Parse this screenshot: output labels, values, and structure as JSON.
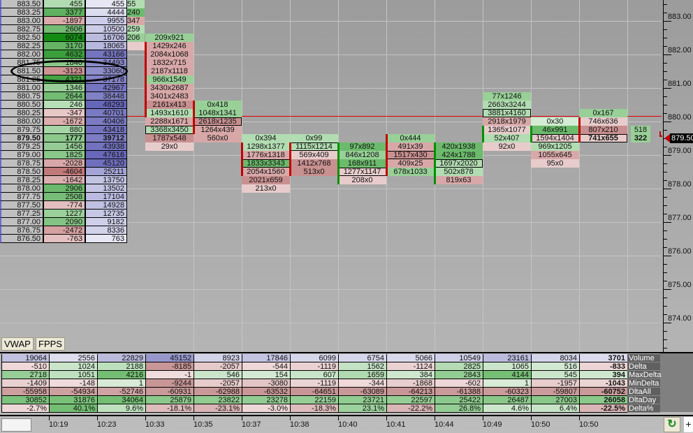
{
  "ladder": {
    "rows": [
      {
        "price": "883.50",
        "delta": 455,
        "volume": 455,
        "prev": "55",
        "prev_tone": "g1"
      },
      {
        "price": "883.25",
        "delta": 3377,
        "volume": 4444,
        "prev": "240",
        "prev_tone": "g3"
      },
      {
        "price": "883.00",
        "delta": -1897,
        "volume": 9955,
        "prev": "347",
        "prev_tone": "r2"
      },
      {
        "price": "882.75",
        "delta": 2606,
        "volume": 10500,
        "prev": "259",
        "prev_tone": "g1"
      },
      {
        "price": "882.50",
        "delta": 6074,
        "volume": 16706,
        "prev": "206",
        "prev_tone": "g2"
      },
      {
        "price": "882.25",
        "delta": 3170,
        "volume": 18065,
        "prev": "",
        "prev_tone": "r1"
      },
      {
        "price": "882.00",
        "delta": 4632,
        "volume": 43166
      },
      {
        "price": "881.75",
        "delta": 1840,
        "volume": 34493
      },
      {
        "price": "881.50",
        "delta": -3123,
        "volume": 33060
      },
      {
        "price": "881.25",
        "delta": 4321,
        "volume": 37178
      },
      {
        "price": "881.00",
        "delta": 1346,
        "volume": 42967
      },
      {
        "price": "880.75",
        "delta": 2644,
        "volume": 38448
      },
      {
        "price": "880.50",
        "delta": 246,
        "volume": 48293
      },
      {
        "price": "880.25",
        "delta": -347,
        "volume": 40701
      },
      {
        "price": "880.00",
        "delta": -1672,
        "volume": 40406
      },
      {
        "price": "879.75",
        "delta": 880,
        "volume": 43418
      },
      {
        "price": "879.50",
        "delta": 1777,
        "volume": 39712,
        "current": true
      },
      {
        "price": "879.25",
        "delta": 1456,
        "volume": 43938
      },
      {
        "price": "879.00",
        "delta": 1825,
        "volume": 47616
      },
      {
        "price": "878.75",
        "delta": -2028,
        "volume": 45120
      },
      {
        "price": "878.50",
        "delta": -4604,
        "volume": 25211
      },
      {
        "price": "878.25",
        "delta": -1642,
        "volume": 13750
      },
      {
        "price": "878.00",
        "delta": 2906,
        "volume": 13502
      },
      {
        "price": "877.75",
        "delta": 2508,
        "volume": 17104
      },
      {
        "price": "877.50",
        "delta": -774,
        "volume": 14928
      },
      {
        "price": "877.25",
        "delta": 1227,
        "volume": 12735
      },
      {
        "price": "877.00",
        "delta": 2090,
        "volume": 9182
      },
      {
        "price": "876.75",
        "delta": -2472,
        "volume": 8336
      },
      {
        "price": "876.50",
        "delta": -763,
        "volume": 763
      }
    ],
    "highlighted_price": "881.50"
  },
  "footprint_columns": [
    {
      "time": "10:33",
      "bar": {
        "from": "882.25",
        "to": "880.25",
        "color": "#c00000"
      },
      "top": "882.50",
      "cells": [
        [
          "209x921",
          "g2"
        ],
        [
          "1429x246",
          "r2"
        ],
        [
          "2084x1068",
          "r2"
        ],
        [
          "1832x715",
          "r2"
        ],
        [
          "2187x1118",
          "r2"
        ],
        [
          "966x1549",
          "g2"
        ],
        [
          "3430x2687",
          "r2"
        ],
        [
          "3401x2483",
          "r2"
        ],
        [
          "2161x413",
          "r3"
        ],
        [
          "1493x1610",
          "g1"
        ],
        [
          "2288x1671",
          "r2"
        ],
        [
          "3368x3450",
          "g1",
          "poc"
        ],
        [
          "1787x548",
          "r3"
        ],
        [
          "29x0",
          "r1"
        ]
      ]
    },
    {
      "time": "10:35",
      "bar": {
        "from": "880.50",
        "to": "879.75",
        "color": "#c00000"
      },
      "top": "880.50",
      "cells": [
        [
          "0x418",
          "g2"
        ],
        [
          "1048x1341",
          "g2"
        ],
        [
          "2618x1235",
          "r3",
          "poc"
        ],
        [
          "1264x439",
          "r2"
        ],
        [
          "560x0",
          "r2"
        ]
      ]
    },
    {
      "time": "10:37",
      "bar": {
        "from": "879.25",
        "to": "878.50",
        "color": "#c00000"
      },
      "top": "879.50",
      "cells": [
        [
          "0x394",
          "g1"
        ],
        [
          "1298x1377",
          "g1"
        ],
        [
          "1776x1318",
          "r2"
        ],
        [
          "1833x3343",
          "g3",
          "poc"
        ],
        [
          "2054x1560",
          "r2"
        ],
        [
          "2021x659",
          "r3"
        ],
        [
          "213x0",
          "r1"
        ]
      ]
    },
    {
      "time": "10:38",
      "bar": {
        "from": "879.25",
        "to": "878.50",
        "color": "#c00000"
      },
      "top": "879.50",
      "cells": [
        [
          "0x99",
          "g1"
        ],
        [
          "1115x1214",
          "g1",
          "poc"
        ],
        [
          "569x409",
          "r1"
        ],
        [
          "1412x768",
          "r3"
        ],
        [
          "513x0",
          "r3"
        ]
      ]
    },
    {
      "time": "10:40",
      "bar": {
        "from": "879.25",
        "to": "878.25",
        "color": "#009000"
      },
      "top": "879.25",
      "cells": [
        [
          "97x892",
          "g3"
        ],
        [
          "846x1208",
          "g2"
        ],
        [
          "168x911",
          "g3"
        ],
        [
          "1277x1147",
          "r1",
          "poc"
        ],
        [
          "208x0",
          "r1"
        ]
      ]
    },
    {
      "time": "10:41",
      "bar": {
        "from": "879.50",
        "to": "878.50",
        "color": "#c00000"
      },
      "top": "879.50",
      "cells": [
        [
          "0x444",
          "g2"
        ],
        [
          "491x39",
          "r2"
        ],
        [
          "1517x430",
          "r3",
          "poc"
        ],
        [
          "409x25",
          "r2"
        ],
        [
          "678x1033",
          "g2"
        ]
      ]
    },
    {
      "time": "10:44",
      "bar": {
        "from": "879.25",
        "to": "878.25",
        "color": "#009000"
      },
      "top": "879.25",
      "cells": [
        [
          "420x1938",
          "g3"
        ],
        [
          "424x1788",
          "g3"
        ],
        [
          "1697x2020",
          "g1",
          "poc"
        ],
        [
          "502x878",
          "g1"
        ],
        [
          "819x63",
          "r2"
        ]
      ]
    },
    {
      "time": "10:49",
      "bar": {
        "from": "879.75",
        "to": "879.50",
        "color": "#009000"
      },
      "top": "880.75",
      "cells": [
        [
          "77x1246",
          "g2"
        ],
        [
          "2663x3244",
          "g1"
        ],
        [
          "3881x4160",
          "g1",
          "poc"
        ],
        [
          "2918x1979",
          "r2"
        ],
        [
          "1365x1077",
          "r1"
        ],
        [
          "52x407",
          "g1"
        ],
        [
          "92x0",
          "r1"
        ]
      ]
    },
    {
      "time": "10:50",
      "bar": {
        "from": "879.75",
        "to": "879.50",
        "color": "#009000"
      },
      "top": "880.00",
      "cells": [
        [
          "0x30",
          "g0"
        ],
        [
          "46x991",
          "g3"
        ],
        [
          "1594x1404",
          "r1",
          "poc"
        ],
        [
          "969x1205",
          "g1"
        ],
        [
          "1055x645",
          "r2"
        ],
        [
          "95x0",
          "r1"
        ]
      ]
    },
    {
      "time": "10:50",
      "bar": {
        "from": "880.00",
        "to": "879.50",
        "color": "#c00000"
      },
      "top": "880.25",
      "cells": [
        [
          "0x167",
          "g2"
        ],
        [
          "746x636",
          "r1"
        ],
        [
          "807x210",
          "r3"
        ],
        [
          "741x655",
          "r1",
          "poc"
        ]
      ]
    }
  ],
  "current_bar": {
    "rows": [
      {
        "price": "879.75",
        "value": "518"
      },
      {
        "price": "879.50",
        "value": "322"
      }
    ]
  },
  "price_axis": {
    "labels": [
      "883.00",
      "882.00",
      "881.00",
      "880.00",
      "879.00",
      "878.00",
      "877.00",
      "876.00",
      "875.00",
      "874.00"
    ],
    "current_price": "879.50"
  },
  "buttons": {
    "vwap": "VWAP",
    "fpps": "FPPS"
  },
  "stats_table": {
    "row_labels": [
      "Volume",
      "Delta",
      "MaxDelta",
      "MinDelta",
      "DltaAll",
      "DltaDay",
      "Delta%"
    ],
    "times": [
      "10:19",
      "10:23",
      "10:33",
      "10:35",
      "10:37",
      "10:38",
      "10:40",
      "10:41",
      "10:44",
      "10:49",
      "10:50",
      "10:50"
    ],
    "columns": [
      [
        "19064",
        "-510",
        "2718",
        "-1409",
        "-55958",
        "30852",
        "-2.7%"
      ],
      [
        "2556",
        "1024",
        "1051",
        "-148",
        "-54934",
        "31876",
        "40.1%"
      ],
      [
        "22829",
        "2188",
        "4216",
        "1",
        "-52746",
        "34064",
        "9.6%"
      ],
      [
        "45152",
        "-8185",
        "-1",
        "-9244",
        "-60931",
        "25879",
        "-18.1%"
      ],
      [
        "8923",
        "-2057",
        "546",
        "-2057",
        "-62988",
        "23822",
        "-23.1%"
      ],
      [
        "17846",
        "-544",
        "154",
        "-3080",
        "-63532",
        "23278",
        "-3.0%"
      ],
      [
        "6099",
        "-1119",
        "607",
        "-1119",
        "-64651",
        "22159",
        "-18.3%"
      ],
      [
        "6754",
        "1562",
        "1659",
        "-344",
        "-63089",
        "23721",
        "23.1%"
      ],
      [
        "5066",
        "-1124",
        "384",
        "-1868",
        "-64213",
        "22597",
        "-22.2%"
      ],
      [
        "10549",
        "2825",
        "2843",
        "-602",
        "-61388",
        "25422",
        "26.8%"
      ],
      [
        "23161",
        "1065",
        "4144",
        "1",
        "-60323",
        "26487",
        "4.6%"
      ],
      [
        "8034",
        "516",
        "545",
        "-1957",
        "-59807",
        "27003",
        "6.4%"
      ],
      [
        "3701",
        "-833",
        "394",
        "-1043",
        "-60752",
        "26058",
        "-22.5%"
      ]
    ]
  },
  "colors": {
    "g0": "#d4ecd4",
    "g1": "#b2dcb2",
    "g2": "#98d098",
    "g3": "#6cba6c",
    "r1": "#e8cccc",
    "r2": "#d8a8a8",
    "r3": "#c89090",
    "last_price_line": "#e00000"
  }
}
